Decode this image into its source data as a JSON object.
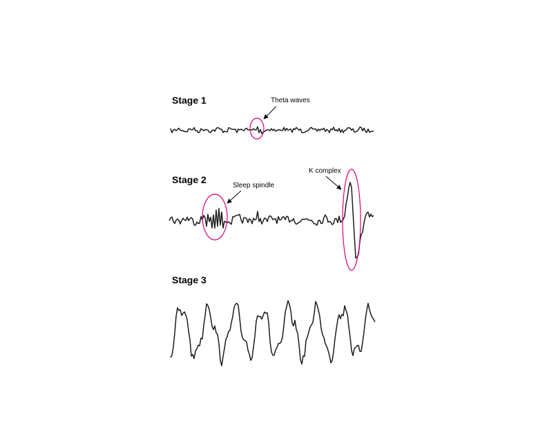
{
  "stages": [
    {
      "label": "Stage 1",
      "annotations": [
        {
          "label": "Theta waves"
        }
      ]
    },
    {
      "label": "Stage 2",
      "annotations": [
        {
          "label": "Sleep spindle"
        },
        {
          "label": "K complex"
        }
      ]
    },
    {
      "label": "Stage 3",
      "annotations": []
    }
  ],
  "colors": {
    "trace": "#1a1a1a",
    "marker": "#d6007a",
    "background": "#ffffff"
  }
}
